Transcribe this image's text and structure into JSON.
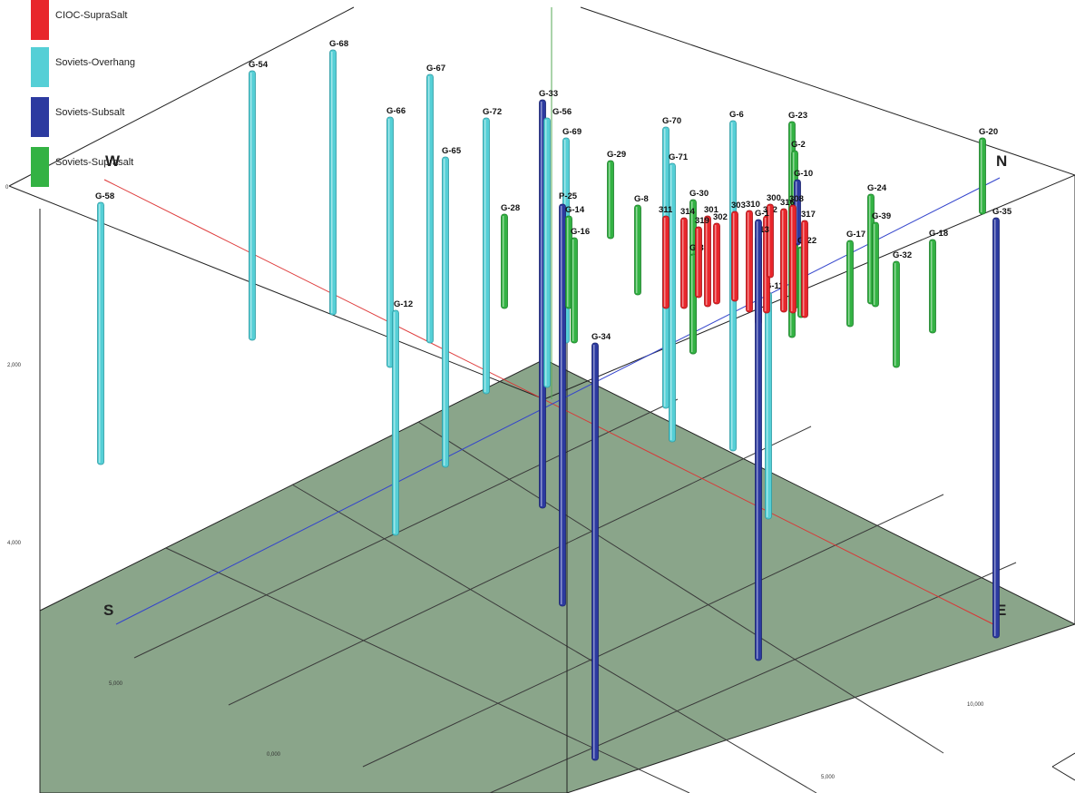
{
  "legend": [
    {
      "label": "CIOC-SupraSalt",
      "color": "#e8262b"
    },
    {
      "label": "Soviets-Overhang",
      "color": "#55cfd6"
    },
    {
      "label": "Soviets-Subsalt",
      "color": "#2c3aa0"
    },
    {
      "label": "Soviets-Suprasalt",
      "color": "#33b243"
    }
  ],
  "directions": {
    "west": "W",
    "north": "N",
    "south": "S",
    "east": "E"
  },
  "axis_ticks": {
    "vertical": [
      "0",
      "2,000",
      "4,000"
    ],
    "south_edge": [
      "5,000",
      "0,000"
    ],
    "east_edge": [
      "5,000",
      "10,000"
    ]
  },
  "wells": [
    {
      "label": "G-58",
      "group": 1
    },
    {
      "label": "G-54",
      "group": 1
    },
    {
      "label": "G-68",
      "group": 1
    },
    {
      "label": "G-67",
      "group": 1
    },
    {
      "label": "G-66",
      "group": 1
    },
    {
      "label": "G-65",
      "group": 1
    },
    {
      "label": "G-72",
      "group": 1
    },
    {
      "label": "G-12",
      "group": 1
    },
    {
      "label": "G-33",
      "group": 2
    },
    {
      "label": "G-56",
      "group": 1
    },
    {
      "label": "G-69",
      "group": 1
    },
    {
      "label": "P-25",
      "group": 2
    },
    {
      "label": "G-14",
      "group": 3
    },
    {
      "label": "G-28",
      "group": 3
    },
    {
      "label": "G-16",
      "group": 3
    },
    {
      "label": "G-34",
      "group": 2
    },
    {
      "label": "G-29",
      "group": 3
    },
    {
      "label": "G-8",
      "group": 3
    },
    {
      "label": "G-70",
      "group": 1
    },
    {
      "label": "G-71",
      "group": 1
    },
    {
      "label": "G-30",
      "group": 3
    },
    {
      "label": "G-31",
      "group": 3
    },
    {
      "label": "G-6",
      "group": 1
    },
    {
      "label": "G-23",
      "group": 3
    },
    {
      "label": "G-2",
      "group": 3
    },
    {
      "label": "G-10",
      "group": 2
    },
    {
      "label": "G-11",
      "group": 1
    },
    {
      "label": "G-22",
      "group": 3
    },
    {
      "label": "G-24",
      "group": 3
    },
    {
      "label": "G-39",
      "group": 3
    },
    {
      "label": "G-17",
      "group": 3
    },
    {
      "label": "G-32",
      "group": 3
    },
    {
      "label": "G-18",
      "group": 3
    },
    {
      "label": "G-20",
      "group": 3
    },
    {
      "label": "G-35",
      "group": 2
    },
    {
      "label": "311",
      "group": 0
    },
    {
      "label": "314",
      "group": 0
    },
    {
      "label": "301",
      "group": 0
    },
    {
      "label": "302",
      "group": 0
    },
    {
      "label": "303",
      "group": 0
    },
    {
      "label": "310",
      "group": 0
    },
    {
      "label": "312",
      "group": 0
    },
    {
      "label": "300",
      "group": 0
    },
    {
      "label": "316",
      "group": 0
    },
    {
      "label": "308",
      "group": 0
    },
    {
      "label": "317",
      "group": 0
    },
    {
      "label": "313",
      "group": 0
    },
    {
      "label": "319",
      "group": 0
    },
    {
      "label": "G-1",
      "group": 2
    }
  ]
}
